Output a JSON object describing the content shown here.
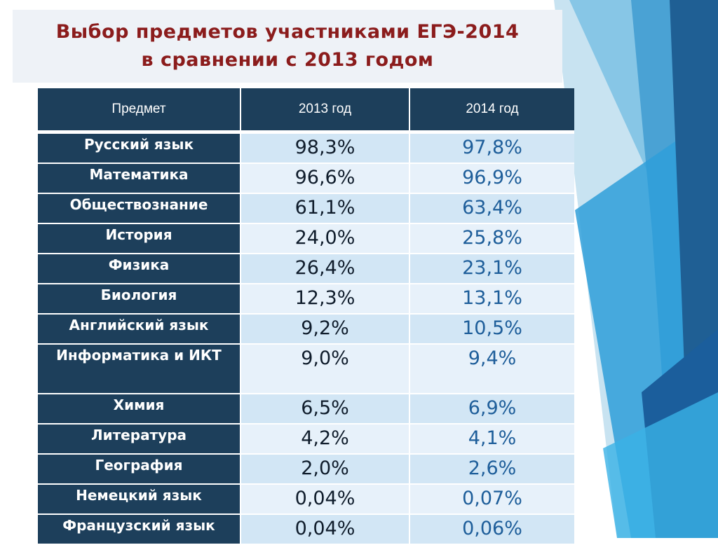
{
  "slide": {
    "title_line1": "Выбор предметов участниками ЕГЭ-2014",
    "title_line2": "в сравнении с 2013 годом"
  },
  "table": {
    "headers": [
      "Предмет",
      "2013 год",
      "2014 год"
    ],
    "rows": [
      {
        "subject": "Русский язык",
        "y2013": "98,3%",
        "y2014": "97,8%"
      },
      {
        "subject": "Математика",
        "y2013": "96,6%",
        "y2014": "96,9%"
      },
      {
        "subject": "Обществознание",
        "y2013": "61,1%",
        "y2014": "63,4%"
      },
      {
        "subject": "История",
        "y2013": "24,0%",
        "y2014": "25,8%"
      },
      {
        "subject": "Физика",
        "y2013": "26,4%",
        "y2014": "23,1%"
      },
      {
        "subject": "Биология",
        "y2013": "12,3%",
        "y2014": "13,1%"
      },
      {
        "subject": "Английский язык",
        "y2013": "9,2%",
        "y2014": "10,5%"
      },
      {
        "subject": "Информатика и ИКТ",
        "y2013": "9,0%",
        "y2014": "9,4%"
      },
      {
        "subject": "Химия",
        "y2013": "6,5%",
        "y2014": "6,9%"
      },
      {
        "subject": "Литература",
        "y2013": "4,2%",
        "y2014": "4,1%"
      },
      {
        "subject": "География",
        "y2013": "2,0%",
        "y2014": "2,6%"
      },
      {
        "subject": "Немецкий язык",
        "y2013": "0,04%",
        "y2014": "0,07%"
      },
      {
        "subject": "Французский язык",
        "y2013": "0,04%",
        "y2014": "0,06%"
      }
    ]
  },
  "colors": {
    "header_bg": "#1d3f5b",
    "title_text": "#8b1c1c",
    "value_2013_text": "#0f1c2b",
    "value_2014_text": "#1e5e9a",
    "row_odd_bg": "#d2e6f5",
    "row_even_bg": "#e7f1fa"
  }
}
